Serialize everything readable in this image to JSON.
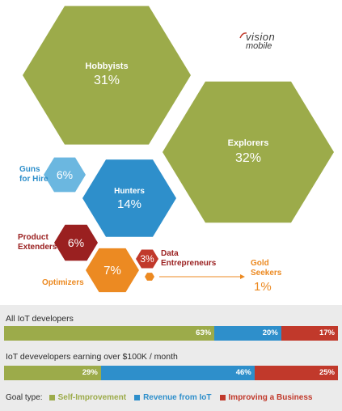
{
  "colors": {
    "olive": "#9cab4a",
    "blue": "#2e8fcb",
    "lightblue": "#6bb7e0",
    "red": "#c1392b",
    "darkred": "#9a2020",
    "orange": "#ec8a22",
    "text_blue": "#2e8fcb",
    "text_red": "#9a2020",
    "text_orange": "#ec8a22"
  },
  "logo": {
    "line1": "vision",
    "line2": "mobile"
  },
  "chart_data": [
    {
      "type": "bubble",
      "segments": [
        {
          "name": "Hobbyists",
          "value": 31,
          "label": "31%",
          "color": "olive"
        },
        {
          "name": "Explorers",
          "value": 32,
          "label": "32%",
          "color": "olive"
        },
        {
          "name": "Guns for Hire",
          "value": 6,
          "label": "6%",
          "color": "lightblue"
        },
        {
          "name": "Hunters",
          "value": 14,
          "label": "14%",
          "color": "blue"
        },
        {
          "name": "Product Extenders",
          "value": 6,
          "label": "6%",
          "color": "darkred"
        },
        {
          "name": "Data Entrepreneurs",
          "value": 3,
          "label": "3%",
          "color": "red"
        },
        {
          "name": "Optimizers",
          "value": 7,
          "label": "7%",
          "color": "orange"
        },
        {
          "name": "Gold Seekers",
          "value": 1,
          "label": "1%",
          "color": "orange"
        }
      ]
    },
    {
      "type": "bar",
      "stacked": true,
      "orientation": "horizontal",
      "categories": [
        "All IoT developers",
        "IoT devevelopers earning over $100K / month"
      ],
      "series": [
        {
          "name": "Self-Improvement",
          "values": [
            63,
            29
          ],
          "color": "#9cab4a"
        },
        {
          "name": "Revenue from IoT",
          "values": [
            20,
            46
          ],
          "color": "#2e8fcb"
        },
        {
          "name": "Improving a Business",
          "values": [
            17,
            25
          ],
          "color": "#c1392b"
        }
      ],
      "legend_title": "Goal type:"
    }
  ]
}
